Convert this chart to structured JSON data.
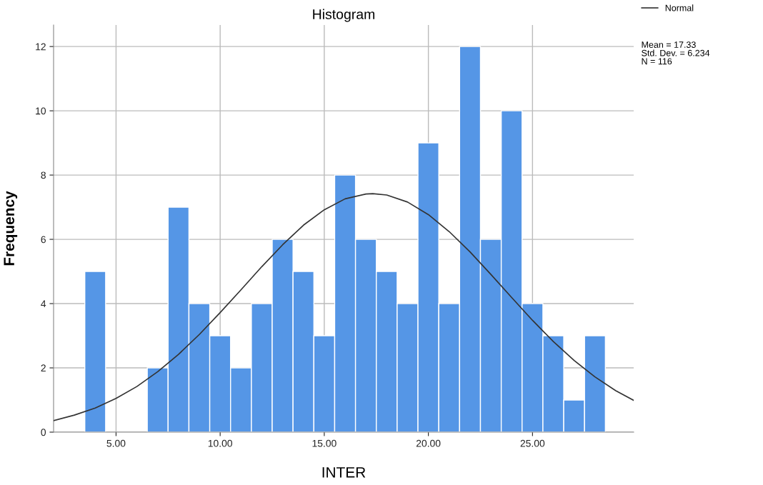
{
  "chart_data": {
    "type": "histogram",
    "title": "Histogram",
    "xlabel": "INTER",
    "ylabel": "Frequency",
    "bins": [
      3.5,
      4.5,
      5.5,
      6.5,
      7.5,
      8.5,
      9.5,
      10.5,
      11.5,
      12.5,
      13.5,
      14.5,
      15.5,
      16.5,
      17.5,
      18.5,
      19.5,
      20.5,
      21.5,
      22.5,
      23.5,
      24.5,
      25.5,
      26.5,
      27.5,
      28.5
    ],
    "values": [
      5,
      0,
      0,
      2,
      7,
      4,
      3,
      2,
      4,
      6,
      5,
      3,
      8,
      6,
      5,
      4,
      9,
      4,
      12,
      6,
      10,
      4,
      3,
      1,
      3
    ],
    "color": "#5596e6",
    "series": [
      {
        "name": "Normal",
        "type": "line",
        "color": "#333333",
        "x": [
          2,
          3,
          4,
          5,
          6,
          7,
          8,
          9,
          10,
          11,
          12,
          13,
          14,
          15,
          16,
          17,
          17.33,
          18,
          19,
          20,
          21,
          22,
          23,
          24,
          25,
          26,
          27,
          28,
          29,
          29.86
        ],
        "values": [
          0.36,
          0.53,
          0.75,
          1.05,
          1.42,
          1.88,
          2.42,
          3.04,
          3.72,
          4.43,
          5.15,
          5.83,
          6.44,
          6.92,
          7.26,
          7.41,
          7.42,
          7.38,
          7.16,
          6.77,
          6.24,
          5.61,
          4.91,
          4.19,
          3.48,
          2.82,
          2.23,
          1.72,
          1.29,
          0.99
        ]
      }
    ],
    "xlim": [
      2,
      29.86
    ],
    "ylim": [
      0,
      12.67
    ],
    "xticks": [
      {
        "value": 5,
        "label": "5.00"
      },
      {
        "value": 10,
        "label": "10.00"
      },
      {
        "value": 15,
        "label": "15.00"
      },
      {
        "value": 20,
        "label": "20.00"
      },
      {
        "value": 25,
        "label": "25.00"
      }
    ],
    "yticks": [
      0,
      2,
      4,
      6,
      8,
      10,
      12
    ],
    "grid": true,
    "legend": "top right",
    "annotations": [
      "Mean = 17.33",
      "Std. Dev. = 6.234",
      "N = 116"
    ]
  }
}
